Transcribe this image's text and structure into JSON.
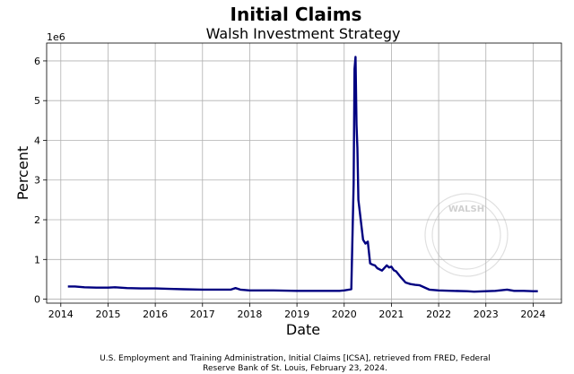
{
  "chart_data": {
    "type": "line",
    "title": "Initial Claims",
    "subtitle": "Walsh Investment Strategy",
    "xlabel": "Date",
    "ylabel": "Percent",
    "y_multiplier_label": "1e6",
    "source_line1": "U.S. Employment and Training Administration, Initial Claims [ICSA], retrieved from FRED, Federal",
    "source_line2": "Reserve Bank of St. Louis, February 23, 2024.",
    "watermark_text": "WALSH",
    "grid": true,
    "xlim": [
      2013.7,
      2024.6
    ],
    "ylim": [
      -0.1,
      6.45
    ],
    "x_ticks": [
      2014,
      2015,
      2016,
      2017,
      2018,
      2019,
      2020,
      2021,
      2022,
      2023,
      2024
    ],
    "x_tick_labels": [
      "2014",
      "2015",
      "2016",
      "2017",
      "2018",
      "2019",
      "2020",
      "2021",
      "2022",
      "2023",
      "2024"
    ],
    "y_ticks": [
      0,
      1,
      2,
      3,
      4,
      5,
      6
    ],
    "y_tick_labels": [
      "0",
      "1",
      "2",
      "3",
      "4",
      "5",
      "6"
    ],
    "series": [
      {
        "color": "#000080",
        "x": [
          2014.15,
          2014.3,
          2014.5,
          2014.75,
          2015.0,
          2015.15,
          2015.4,
          2015.7,
          2016.0,
          2016.3,
          2016.6,
          2017.0,
          2017.3,
          2017.6,
          2017.7,
          2017.8,
          2018.0,
          2018.5,
          2019.0,
          2019.5,
          2019.9,
          2020.0,
          2020.15,
          2020.2,
          2020.22,
          2020.24,
          2020.26,
          2020.28,
          2020.3,
          2020.35,
          2020.4,
          2020.45,
          2020.5,
          2020.55,
          2020.6,
          2020.65,
          2020.7,
          2020.8,
          2020.9,
          2020.95,
          2021.0,
          2021.05,
          2021.1,
          2021.2,
          2021.3,
          2021.4,
          2021.5,
          2021.6,
          2021.8,
          2022.0,
          2022.3,
          2022.6,
          2022.75,
          2023.0,
          2023.2,
          2023.45,
          2023.6,
          2023.8,
          2024.0,
          2024.1
        ],
        "values": [
          0.32,
          0.32,
          0.3,
          0.29,
          0.29,
          0.3,
          0.28,
          0.27,
          0.27,
          0.26,
          0.25,
          0.24,
          0.24,
          0.24,
          0.28,
          0.24,
          0.22,
          0.22,
          0.21,
          0.21,
          0.21,
          0.22,
          0.25,
          2.9,
          5.8,
          6.1,
          4.4,
          3.8,
          2.5,
          2.0,
          1.5,
          1.4,
          1.45,
          0.9,
          0.87,
          0.85,
          0.78,
          0.72,
          0.85,
          0.8,
          0.82,
          0.73,
          0.7,
          0.55,
          0.42,
          0.38,
          0.36,
          0.35,
          0.24,
          0.22,
          0.21,
          0.2,
          0.19,
          0.2,
          0.21,
          0.24,
          0.21,
          0.21,
          0.2,
          0.2
        ]
      }
    ]
  }
}
